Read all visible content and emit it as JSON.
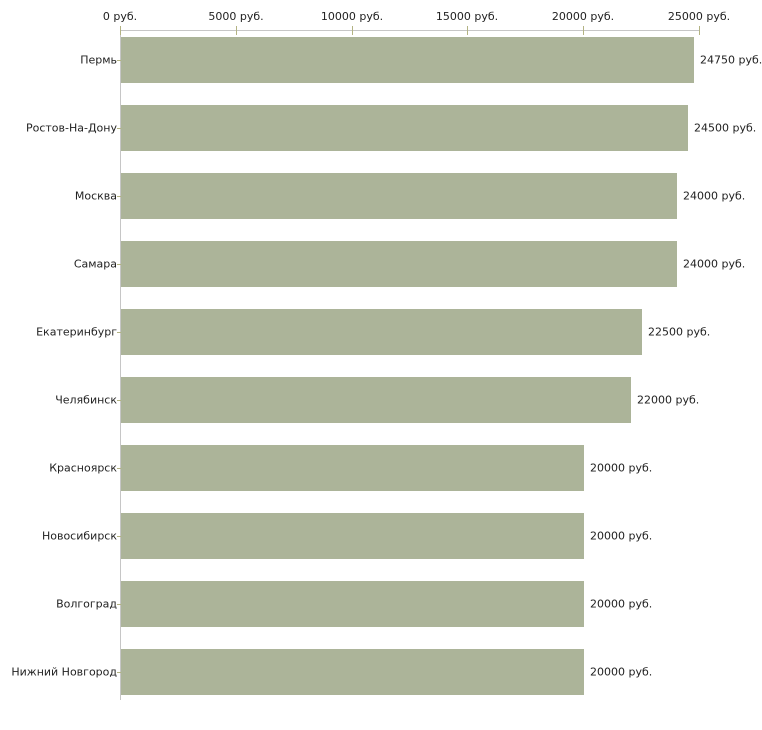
{
  "chart_data": {
    "type": "bar",
    "orientation": "horizontal",
    "title": "",
    "xlabel": "",
    "ylabel": "",
    "categories": [
      "Пермь",
      "Ростов-На-Дону",
      "Москва",
      "Самара",
      "Екатеринбург",
      "Челябинск",
      "Красноярск",
      "Новосибирск",
      "Волгоград",
      "Нижний Новгород"
    ],
    "values": [
      24750,
      24500,
      24000,
      24000,
      22500,
      22000,
      20000,
      20000,
      20000,
      20000
    ],
    "value_labels": [
      "24750 руб.",
      "24500 руб.",
      "24000 руб.",
      "24000 руб.",
      "22500 руб.",
      "22000 руб.",
      "20000 руб.",
      "20000 руб.",
      "20000 руб.",
      "20000 руб."
    ],
    "x_tick_values": [
      0,
      5000,
      10000,
      15000,
      20000,
      25000
    ],
    "x_tick_labels": [
      "0 руб.",
      "5000 руб.",
      "10000 руб.",
      "15000 руб.",
      "20000 руб.",
      "25000 руб."
    ],
    "xlim": [
      0,
      25000
    ],
    "grid": false,
    "legend": null,
    "colors": {
      "bar": "#acb499",
      "axis": "#c6c6c6",
      "tick": "#b3b383",
      "text": "#222222"
    }
  },
  "layout_note": "horizontal bar chart of salaries by city in rubles"
}
